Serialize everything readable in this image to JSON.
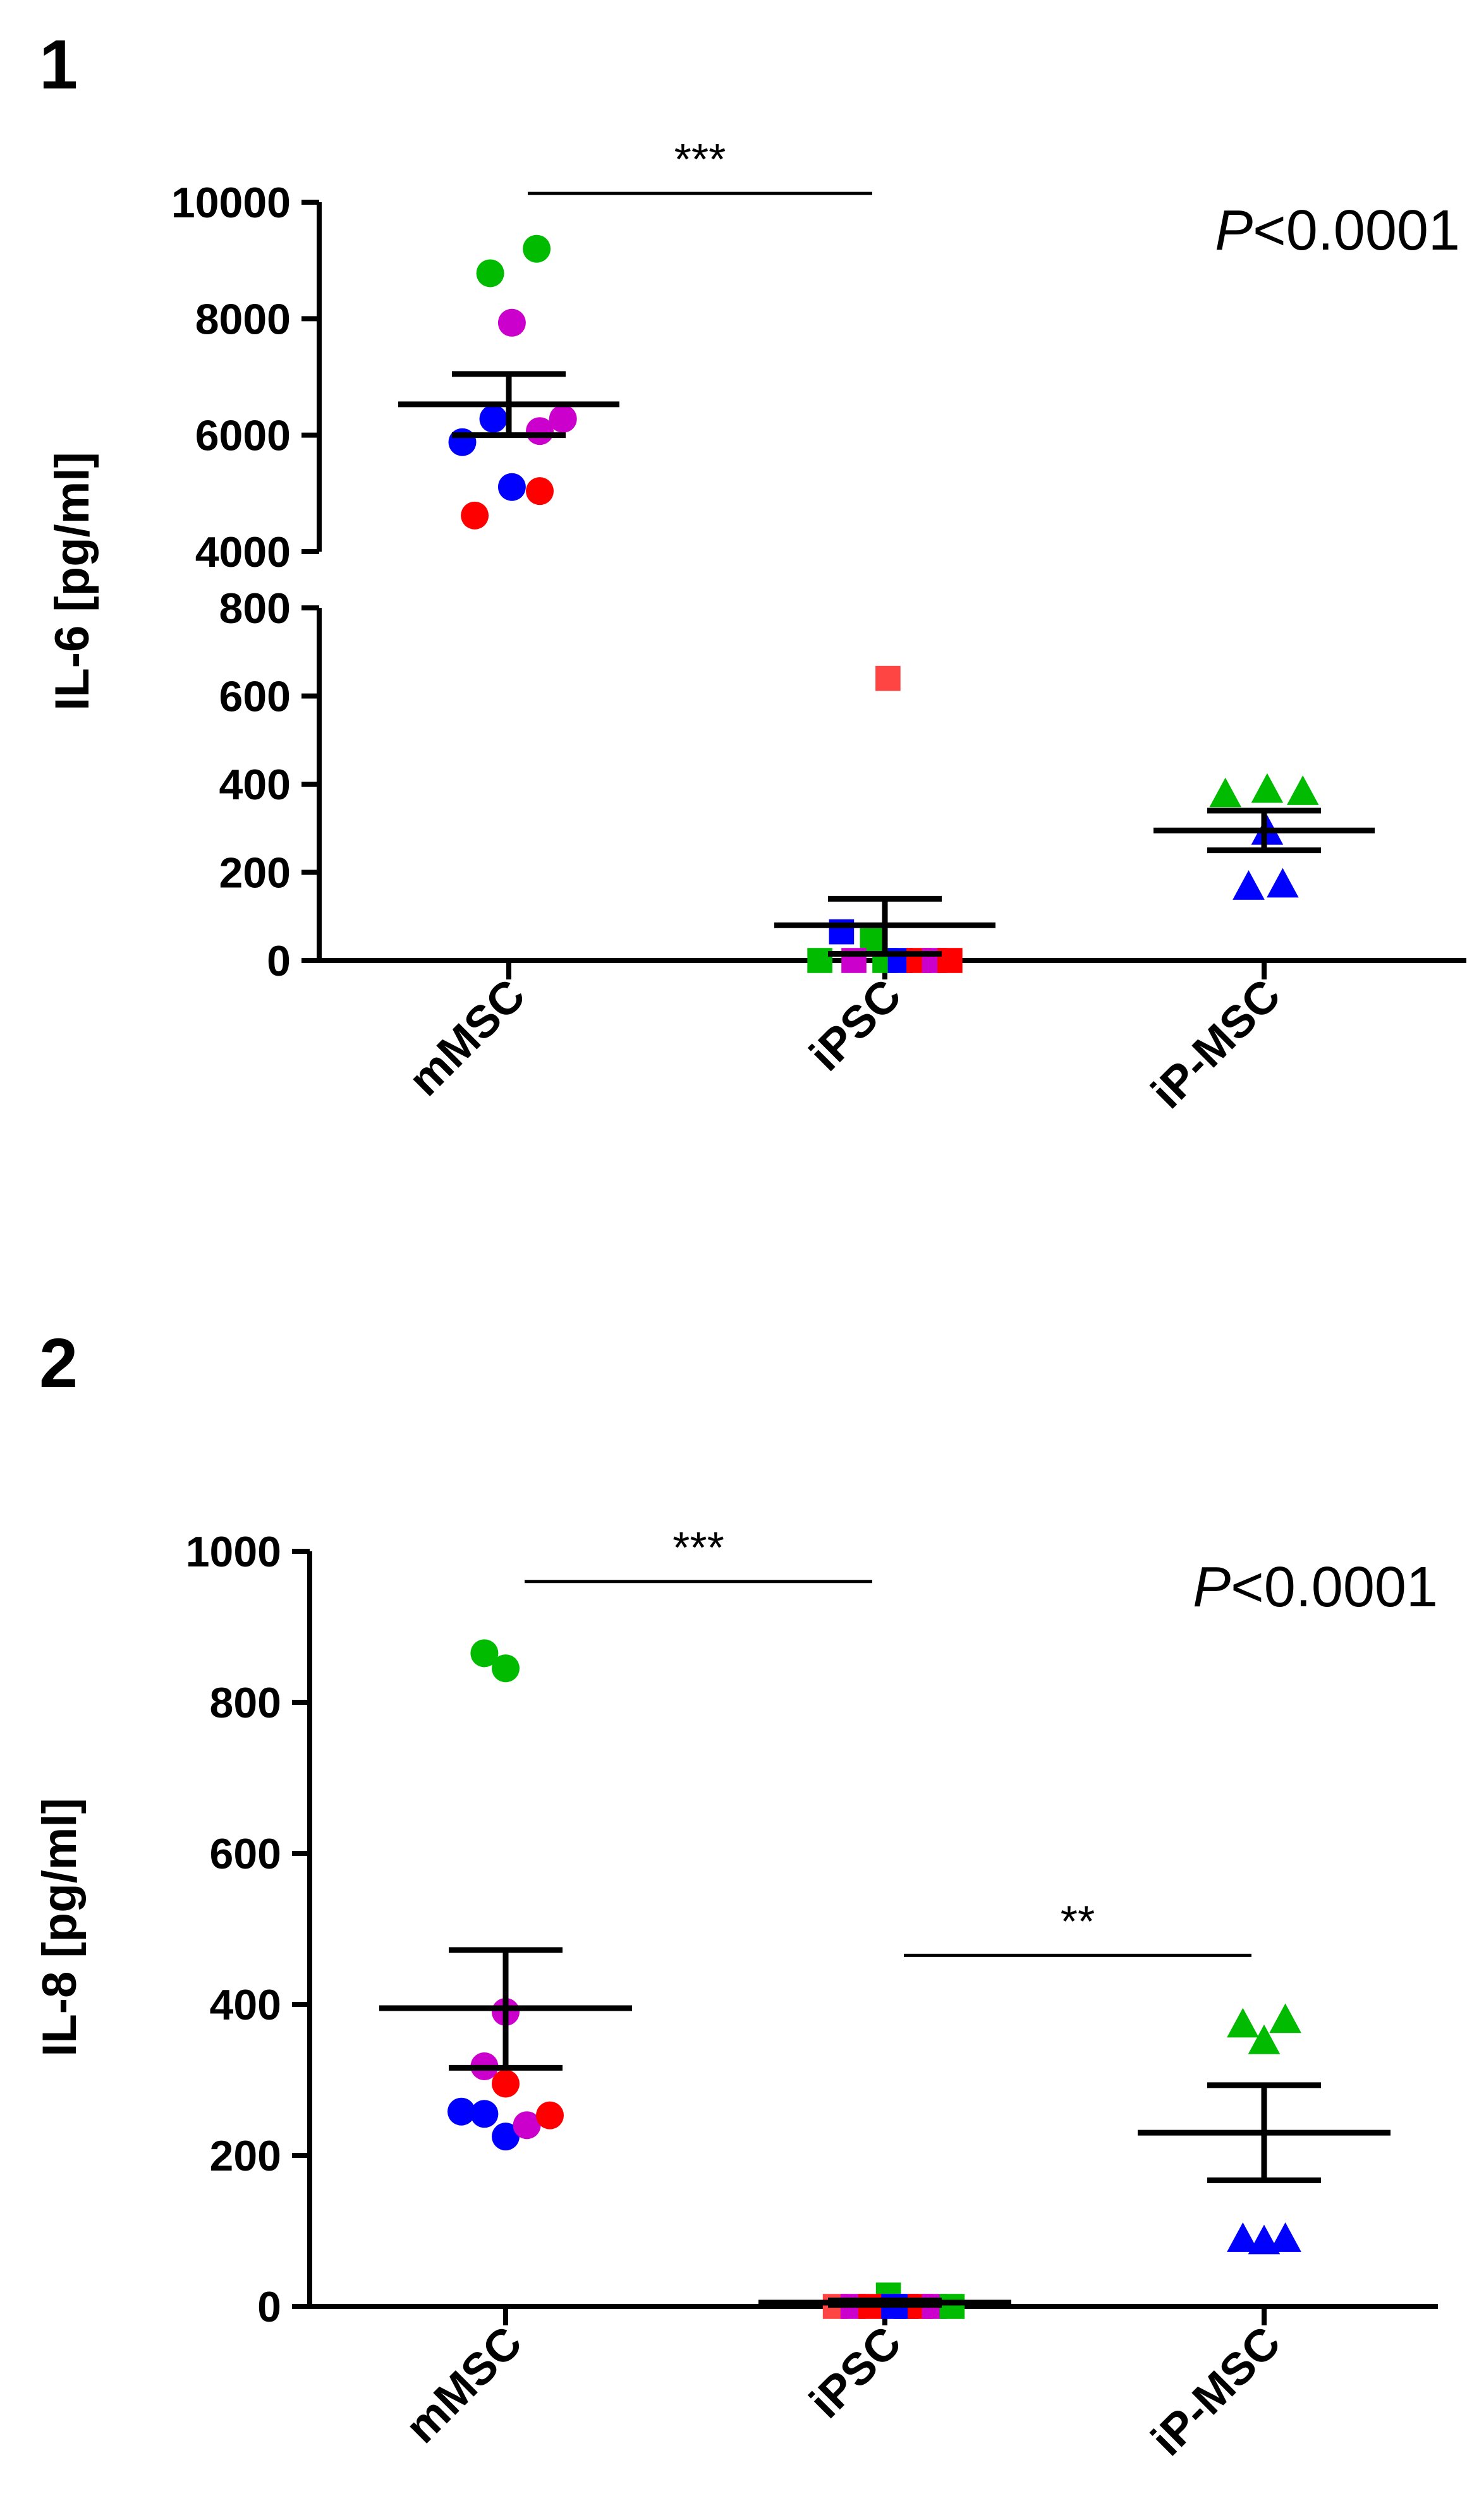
{
  "chart_data": [
    {
      "type": "scatter",
      "panel_label": "1",
      "ylabel": "IL-6 [pg/ml]",
      "p_value_label": {
        "italic": "P",
        "rest": "<0.0001"
      },
      "categories": [
        "mMSC",
        "iPSC",
        "iP-MSC"
      ],
      "broken_axis": true,
      "y_segments": [
        {
          "ylim": [
            4000,
            10000
          ],
          "ticks": [
            4000,
            6000,
            8000,
            10000
          ]
        },
        {
          "ylim": [
            0,
            800
          ],
          "ticks": [
            0,
            200,
            400,
            600,
            800
          ]
        }
      ],
      "colors": {
        "red": "#ff0000",
        "blue": "#0000ff",
        "green": "#00bb00",
        "magenta": "#cc00cc",
        "light_red": "#ff4444"
      },
      "groups": [
        {
          "category": "mMSC",
          "marker": "circle",
          "mean": 6530,
          "sem_upper": 7050,
          "sem_lower": 6000,
          "points": [
            {
              "y": 9200,
              "color": "green",
              "jitter": 0.18
            },
            {
              "y": 8780,
              "color": "green",
              "jitter": -0.12
            },
            {
              "y": 7930,
              "color": "magenta",
              "jitter": 0.02
            },
            {
              "y": 6280,
              "color": "magenta",
              "jitter": 0.35
            },
            {
              "y": 6070,
              "color": "magenta",
              "jitter": 0.2
            },
            {
              "y": 6280,
              "color": "blue",
              "jitter": -0.1
            },
            {
              "y": 5880,
              "color": "blue",
              "jitter": -0.3
            },
            {
              "y": 5110,
              "color": "blue",
              "jitter": 0.02
            },
            {
              "y": 5040,
              "color": "red",
              "jitter": 0.2
            },
            {
              "y": 4620,
              "color": "red",
              "jitter": -0.22
            }
          ]
        },
        {
          "category": "iPSC",
          "marker": "square",
          "mean": 80,
          "sem_upper": 140,
          "sem_lower": 15,
          "points": [
            {
              "y": 640,
              "color": "light_red",
              "jitter": 0.02
            },
            {
              "y": 65,
              "color": "blue",
              "jitter": -0.28
            },
            {
              "y": 45,
              "color": "green",
              "jitter": -0.08
            },
            {
              "y": 0,
              "color": "green",
              "jitter": -0.42
            },
            {
              "y": 0,
              "color": "magenta",
              "jitter": -0.2
            },
            {
              "y": 0,
              "color": "green",
              "jitter": 0.0
            },
            {
              "y": 0,
              "color": "blue",
              "jitter": 0.1
            },
            {
              "y": 0,
              "color": "red",
              "jitter": 0.22
            },
            {
              "y": 0,
              "color": "magenta",
              "jitter": 0.32
            },
            {
              "y": 0,
              "color": "red",
              "jitter": 0.42
            }
          ]
        },
        {
          "category": "iP-MSC",
          "marker": "triangle",
          "mean": 295,
          "sem_upper": 340,
          "sem_lower": 250,
          "points": [
            {
              "y": 375,
              "color": "green",
              "jitter": -0.25
            },
            {
              "y": 385,
              "color": "green",
              "jitter": 0.02
            },
            {
              "y": 380,
              "color": "green",
              "jitter": 0.25
            },
            {
              "y": 290,
              "color": "blue",
              "jitter": 0.02
            },
            {
              "y": 165,
              "color": "blue",
              "jitter": -0.1
            },
            {
              "y": 170,
              "color": "blue",
              "jitter": 0.12
            }
          ]
        }
      ],
      "significance": [
        {
          "from": "mMSC",
          "to": "iPSC",
          "label": "***",
          "y": 10150
        }
      ]
    },
    {
      "type": "scatter",
      "panel_label": "2",
      "ylabel": "IL-8 [pg/ml]",
      "p_value_label": {
        "italic": "P",
        "rest": "<0.0001"
      },
      "categories": [
        "mMSC",
        "iPSC",
        "iP-MSC"
      ],
      "broken_axis": false,
      "ylim": [
        0,
        1000
      ],
      "ticks": [
        0,
        200,
        400,
        600,
        800,
        1000
      ],
      "colors": {
        "red": "#ff0000",
        "blue": "#0000ff",
        "green": "#00bb00",
        "magenta": "#cc00cc",
        "light_red": "#ff4444"
      },
      "groups": [
        {
          "category": "mMSC",
          "marker": "circle",
          "mean": 395,
          "sem_upper": 472,
          "sem_lower": 316,
          "points": [
            {
              "y": 865,
              "color": "green",
              "jitter": -0.12
            },
            {
              "y": 845,
              "color": "green",
              "jitter": 0.0
            },
            {
              "y": 390,
              "color": "magenta",
              "jitter": 0.0
            },
            {
              "y": 318,
              "color": "magenta",
              "jitter": -0.12
            },
            {
              "y": 295,
              "color": "red",
              "jitter": 0.0
            },
            {
              "y": 258,
              "color": "blue",
              "jitter": -0.25
            },
            {
              "y": 255,
              "color": "blue",
              "jitter": -0.12
            },
            {
              "y": 225,
              "color": "blue",
              "jitter": 0.0
            },
            {
              "y": 240,
              "color": "magenta",
              "jitter": 0.12
            },
            {
              "y": 253,
              "color": "red",
              "jitter": 0.25
            }
          ]
        },
        {
          "category": "iPSC",
          "marker": "square",
          "mean": 5,
          "sem_upper": 8,
          "sem_lower": 2,
          "points": [
            {
              "y": 15,
              "color": "green",
              "jitter": 0.02
            },
            {
              "y": 0,
              "color": "light_red",
              "jitter": -0.28
            },
            {
              "y": 0,
              "color": "magenta",
              "jitter": -0.18
            },
            {
              "y": 0,
              "color": "red",
              "jitter": -0.08
            },
            {
              "y": 0,
              "color": "blue",
              "jitter": 0.05
            },
            {
              "y": 0,
              "color": "blue",
              "jitter": 0.12
            },
            {
              "y": 0,
              "color": "red",
              "jitter": 0.2
            },
            {
              "y": 0,
              "color": "magenta",
              "jitter": 0.28
            },
            {
              "y": 0,
              "color": "green",
              "jitter": 0.38
            }
          ]
        },
        {
          "category": "iP-MSC",
          "marker": "triangle",
          "mean": 230,
          "sem_upper": 293,
          "sem_lower": 167,
          "points": [
            {
              "y": 372,
              "color": "green",
              "jitter": -0.12
            },
            {
              "y": 350,
              "color": "green",
              "jitter": 0.0
            },
            {
              "y": 378,
              "color": "green",
              "jitter": 0.12
            },
            {
              "y": 88,
              "color": "blue",
              "jitter": -0.12
            },
            {
              "y": 85,
              "color": "blue",
              "jitter": 0.0
            },
            {
              "y": 88,
              "color": "blue",
              "jitter": 0.12
            }
          ]
        }
      ],
      "significance": [
        {
          "from": "mMSC",
          "to": "iPSC",
          "label": "***",
          "y": 960
        },
        {
          "from": "iPSC",
          "to": "iP-MSC",
          "label": "**",
          "y": 465
        }
      ]
    }
  ]
}
